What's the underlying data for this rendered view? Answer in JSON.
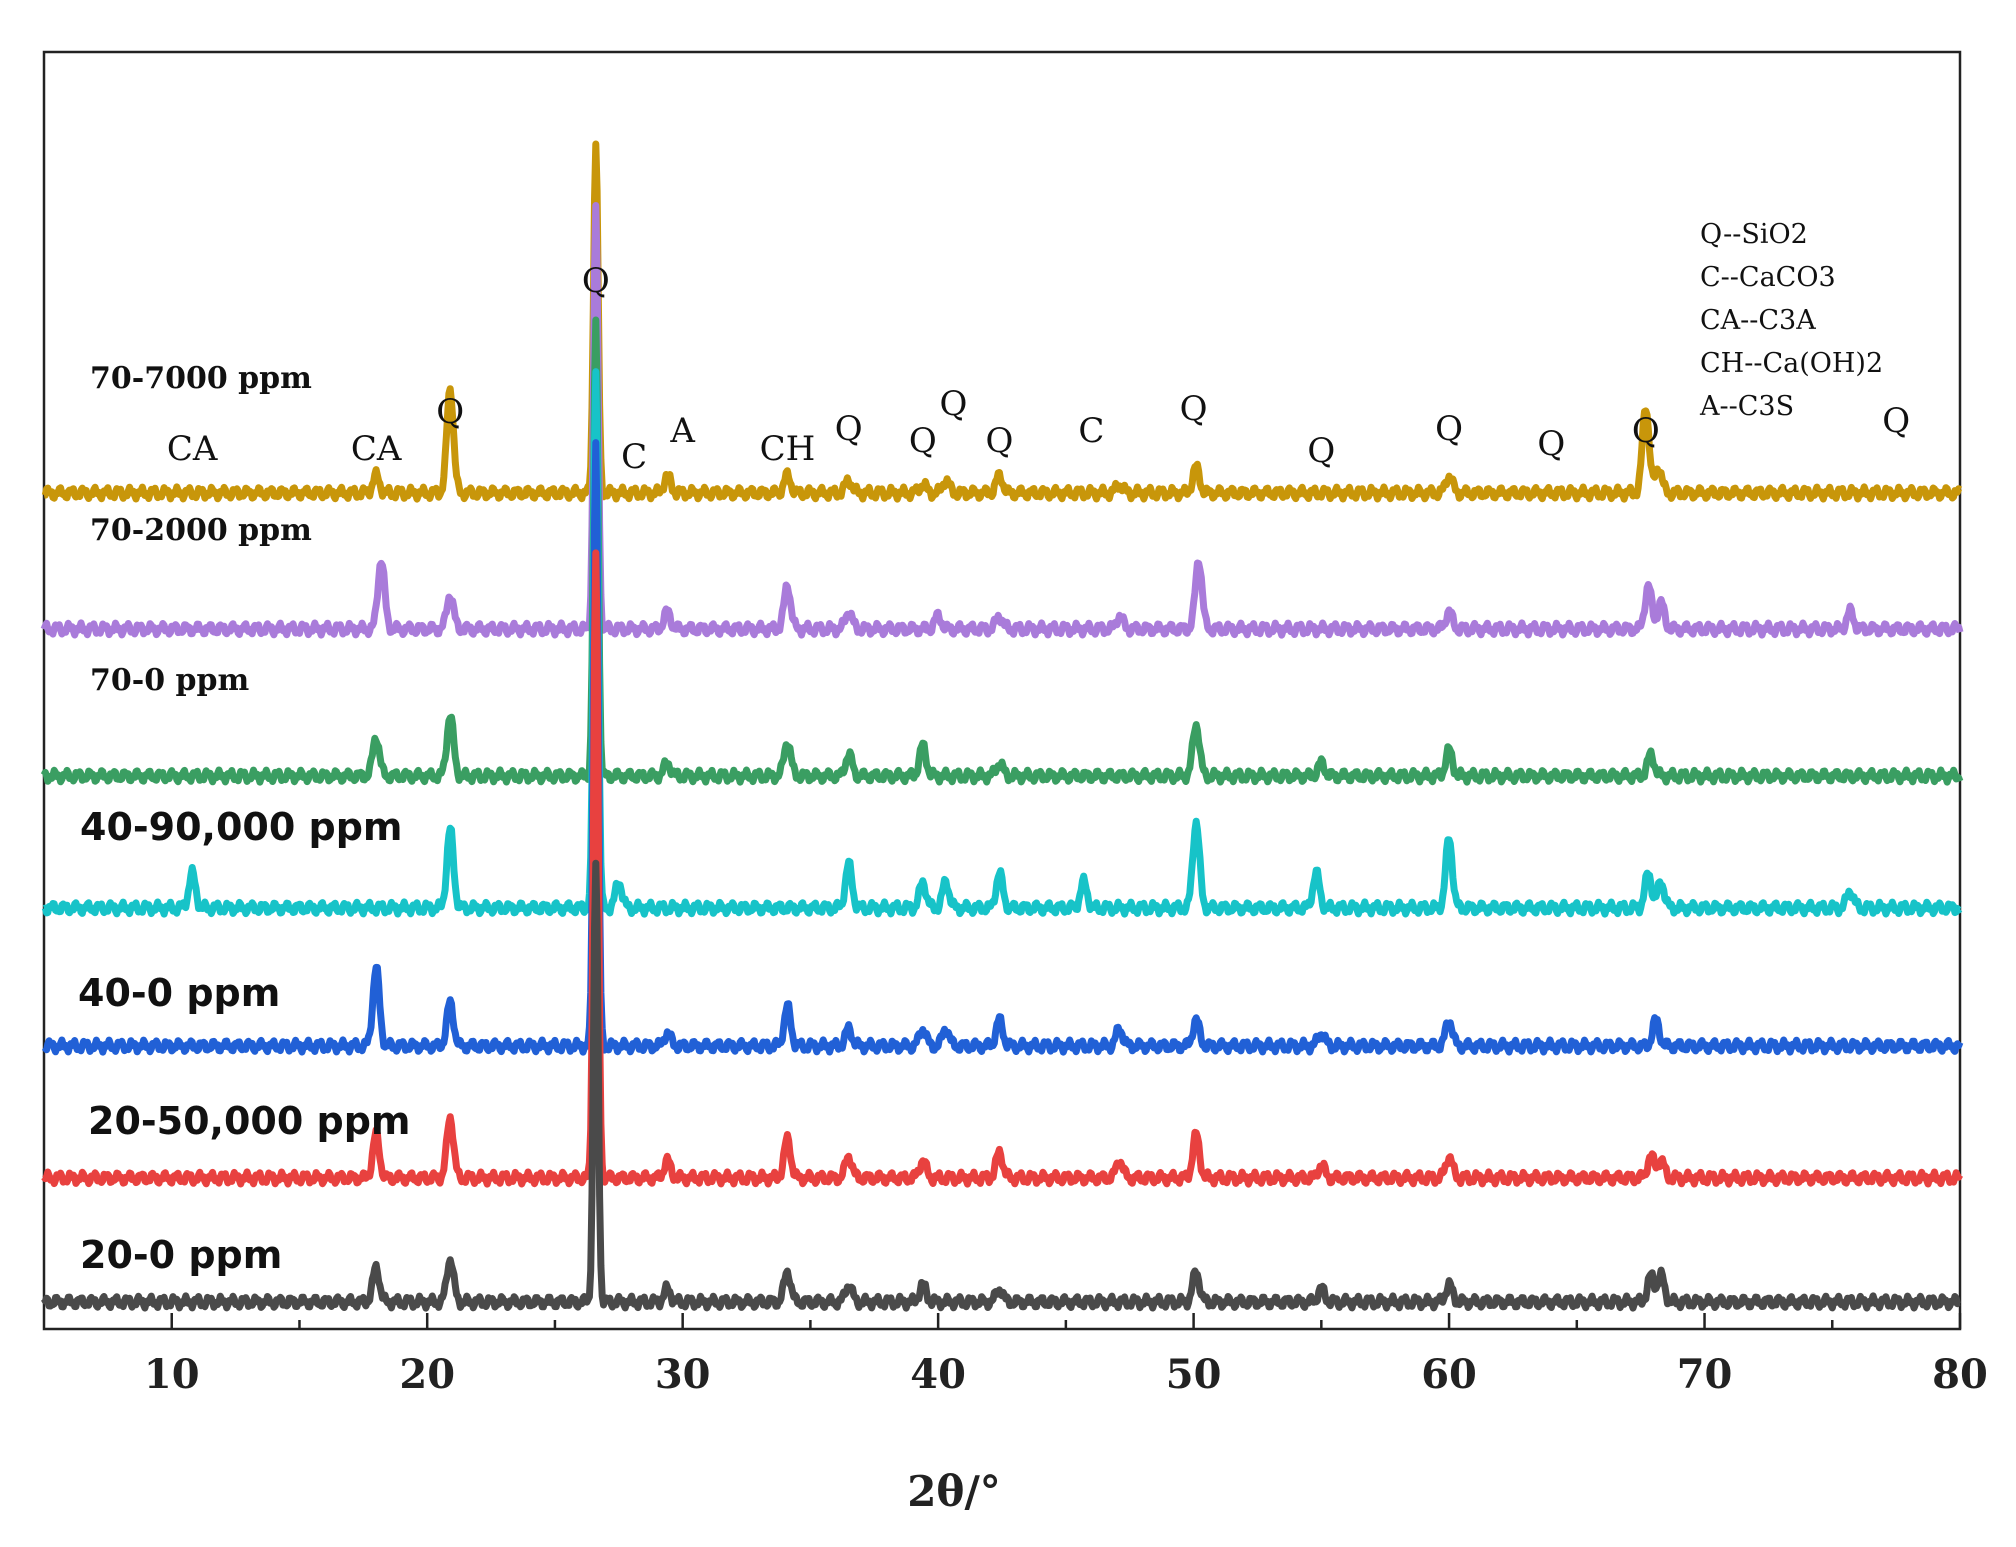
{
  "chart_data": {
    "type": "line",
    "title": "",
    "xlabel": "2θ/°",
    "ylabel": "",
    "xlim": [
      5,
      80
    ],
    "xticks": [
      "10",
      "20",
      "30",
      "40",
      "50",
      "60",
      "70",
      "80"
    ],
    "legend": {
      "placement": "top-right",
      "entries": [
        "Q--SiO2",
        "C--CaCO3",
        "CA--C3A",
        "CH--Ca(OH)2",
        "A--C3S"
      ]
    },
    "peak_annotations": [
      {
        "label": "CA",
        "x": 10.8
      },
      {
        "label": "CA",
        "x": 18.0
      },
      {
        "label": "Q",
        "x": 20.9
      },
      {
        "label": "Q",
        "x": 26.6
      },
      {
        "label": "C",
        "x": 28.1
      },
      {
        "label": "A",
        "x": 30.0
      },
      {
        "label": "CH",
        "x": 34.1
      },
      {
        "label": "Q",
        "x": 36.5
      },
      {
        "label": "Q",
        "x": 39.4
      },
      {
        "label": "Q",
        "x": 40.6
      },
      {
        "label": "Q",
        "x": 42.4
      },
      {
        "label": "C",
        "x": 46.0
      },
      {
        "label": "Q",
        "x": 50.0
      },
      {
        "label": "Q",
        "x": 55.0
      },
      {
        "label": "Q",
        "x": 60.0
      },
      {
        "label": "Q",
        "x": 64.0
      },
      {
        "label": "Q",
        "x": 67.7
      },
      {
        "label": "Q",
        "x": 77.5
      }
    ],
    "series": [
      {
        "name": "70-7000 ppm",
        "color": "#C8960A",
        "peaks": [
          [
            18.0,
            0.02
          ],
          [
            20.9,
            0.12
          ],
          [
            26.6,
            0.4
          ],
          [
            29.4,
            0.02
          ],
          [
            34.1,
            0.02
          ],
          [
            36.5,
            0.015
          ],
          [
            39.4,
            0.01
          ],
          [
            40.3,
            0.015
          ],
          [
            42.4,
            0.02
          ],
          [
            47.1,
            0.01
          ],
          [
            50.1,
            0.03
          ],
          [
            60.0,
            0.02
          ],
          [
            67.7,
            0.1
          ],
          [
            68.2,
            0.03
          ]
        ]
      },
      {
        "name": "70-2000 ppm",
        "color": "#A97BDA",
        "peaks": [
          [
            18.2,
            0.08
          ],
          [
            20.9,
            0.04
          ],
          [
            26.6,
            0.48
          ],
          [
            29.4,
            0.02
          ],
          [
            34.1,
            0.05
          ],
          [
            36.5,
            0.02
          ],
          [
            40.0,
            0.015
          ],
          [
            42.4,
            0.015
          ],
          [
            47.1,
            0.015
          ],
          [
            50.2,
            0.08
          ],
          [
            60.0,
            0.02
          ],
          [
            67.8,
            0.05
          ],
          [
            68.3,
            0.03
          ],
          [
            75.7,
            0.02
          ]
        ]
      },
      {
        "name": "70-0 ppm",
        "color": "#3A9E62",
        "peaks": [
          [
            18.0,
            0.045
          ],
          [
            20.9,
            0.07
          ],
          [
            26.6,
            0.52
          ],
          [
            29.4,
            0.015
          ],
          [
            34.1,
            0.04
          ],
          [
            36.5,
            0.025
          ],
          [
            39.4,
            0.035
          ],
          [
            42.4,
            0.015
          ],
          [
            50.1,
            0.06
          ],
          [
            55.0,
            0.015
          ],
          [
            60.0,
            0.03
          ],
          [
            67.9,
            0.025
          ]
        ]
      },
      {
        "name": "40-90,000 ppm",
        "color": "#17C3C8",
        "peaks": [
          [
            10.8,
            0.04
          ],
          [
            20.9,
            0.09
          ],
          [
            26.6,
            0.62
          ],
          [
            27.5,
            0.03
          ],
          [
            36.5,
            0.05
          ],
          [
            39.4,
            0.03
          ],
          [
            40.3,
            0.03
          ],
          [
            42.4,
            0.04
          ],
          [
            45.7,
            0.03
          ],
          [
            50.1,
            0.1
          ],
          [
            54.8,
            0.04
          ],
          [
            60.0,
            0.08
          ],
          [
            67.8,
            0.04
          ],
          [
            68.3,
            0.03
          ],
          [
            75.7,
            0.02
          ]
        ]
      },
      {
        "name": "40-0 ppm",
        "color": "#2160D6",
        "peaks": [
          [
            18.0,
            0.09
          ],
          [
            20.9,
            0.05
          ],
          [
            26.6,
            0.7
          ],
          [
            29.4,
            0.015
          ],
          [
            34.1,
            0.045
          ],
          [
            36.5,
            0.02
          ],
          [
            39.4,
            0.02
          ],
          [
            40.3,
            0.02
          ],
          [
            42.4,
            0.03
          ],
          [
            47.1,
            0.02
          ],
          [
            50.1,
            0.03
          ],
          [
            55.0,
            0.015
          ],
          [
            60.0,
            0.03
          ],
          [
            68.1,
            0.03
          ]
        ]
      },
      {
        "name": "20-50,000 ppm",
        "color": "#E8413F",
        "peaks": [
          [
            18.0,
            0.05
          ],
          [
            20.9,
            0.07
          ],
          [
            26.6,
            0.72
          ],
          [
            29.4,
            0.02
          ],
          [
            34.1,
            0.045
          ],
          [
            36.5,
            0.025
          ],
          [
            39.4,
            0.02
          ],
          [
            42.4,
            0.03
          ],
          [
            47.1,
            0.02
          ],
          [
            50.1,
            0.05
          ],
          [
            55.0,
            0.015
          ],
          [
            60.0,
            0.025
          ],
          [
            67.9,
            0.025
          ],
          [
            68.3,
            0.02
          ]
        ]
      },
      {
        "name": "20-0 ppm",
        "color": "#4A4A4A",
        "peaks": [
          [
            18.0,
            0.04
          ],
          [
            20.9,
            0.05
          ],
          [
            26.6,
            0.5
          ],
          [
            29.4,
            0.015
          ],
          [
            34.1,
            0.035
          ],
          [
            36.5,
            0.02
          ],
          [
            39.4,
            0.02
          ],
          [
            42.4,
            0.015
          ],
          [
            50.1,
            0.035
          ],
          [
            55.0,
            0.015
          ],
          [
            60.0,
            0.02
          ],
          [
            67.9,
            0.03
          ],
          [
            68.3,
            0.03
          ]
        ]
      }
    ]
  }
}
